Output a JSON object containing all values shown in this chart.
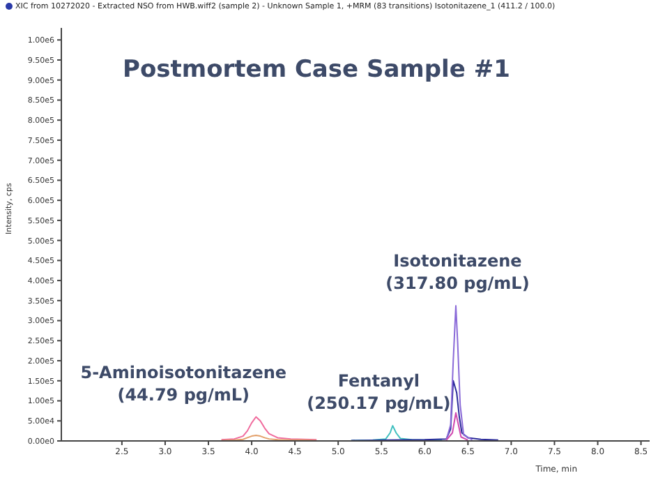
{
  "chart_data": {
    "type": "line",
    "title": "XIC from 10272020 - Extracted NSO from HWB.wiff2 (sample 2) - Unknown Sample 1, +MRM (83 transitions) Isotonitazene_1 (411.2 / 100.0)",
    "subtitle": "Postmortem Case Sample #1",
    "xlabel": "Time, min",
    "ylabel": "Intensity, cps",
    "xlim": [
      1.8,
      8.6
    ],
    "xticks": [
      2.5,
      {
        "value": 3,
        "label": "3.0"
      },
      3.5,
      {
        "value": 4,
        "label": "4.0"
      },
      4.5,
      {
        "value": 5,
        "label": "5.0"
      },
      5.5,
      {
        "value": 6,
        "label": "6.0"
      },
      6.5,
      {
        "value": 7,
        "label": "7.0"
      },
      7.5,
      {
        "value": 8,
        "label": "8.0"
      },
      8.5
    ],
    "ylim": [
      0,
      1030000
    ],
    "yticks": [
      {
        "value": 0,
        "label": "0.00e0"
      },
      {
        "value": 50000,
        "label": "5.00e4"
      },
      {
        "value": 100000,
        "label": "1.00e5"
      },
      {
        "value": 150000,
        "label": "1.50e5"
      },
      {
        "value": 200000,
        "label": "2.00e5"
      },
      {
        "value": 250000,
        "label": "2.50e5"
      },
      {
        "value": 300000,
        "label": "3.00e5"
      },
      {
        "value": 350000,
        "label": "3.50e5"
      },
      {
        "value": 400000,
        "label": "4.00e5"
      },
      {
        "value": 450000,
        "label": "4.50e5"
      },
      {
        "value": 500000,
        "label": "5.00e5"
      },
      {
        "value": 550000,
        "label": "5.50e5"
      },
      {
        "value": 600000,
        "label": "6.00e5"
      },
      {
        "value": 650000,
        "label": "6.50e5"
      },
      {
        "value": 700000,
        "label": "7.00e5"
      },
      {
        "value": 750000,
        "label": "7.50e5"
      },
      {
        "value": 800000,
        "label": "8.00e5"
      },
      {
        "value": 850000,
        "label": "8.50e5"
      },
      {
        "value": 900000,
        "label": "9.00e5"
      },
      {
        "value": 950000,
        "label": "9.50e5"
      },
      {
        "value": 1000000,
        "label": "1.00e6"
      }
    ],
    "grid": false,
    "legend": false,
    "series": [
      {
        "color": "#f06a9c",
        "x": [
          3.65,
          3.8,
          3.9,
          3.95,
          4.0,
          4.05,
          4.1,
          4.15,
          4.2,
          4.3,
          4.45,
          4.6,
          4.75
        ],
        "values": [
          3000,
          5000,
          12000,
          25000,
          45000,
          60000,
          50000,
          32000,
          18000,
          8000,
          5000,
          4000,
          3000
        ]
      },
      {
        "color": "#e3a06a",
        "x": [
          3.65,
          3.8,
          3.9,
          3.95,
          4.0,
          4.05,
          4.1,
          4.15,
          4.2,
          4.3,
          4.45,
          4.6,
          4.75
        ],
        "values": [
          1000,
          2000,
          4000,
          8000,
          12000,
          14000,
          12000,
          8000,
          5000,
          3000,
          2000,
          2000,
          1000
        ]
      },
      {
        "color": "#3fbfbf",
        "x": [
          5.15,
          5.4,
          5.55,
          5.6,
          5.63,
          5.67,
          5.72,
          5.85,
          6.0,
          6.2
        ],
        "values": [
          1000,
          2000,
          5000,
          20000,
          38000,
          20000,
          6000,
          3000,
          2000,
          2000
        ]
      },
      {
        "color": "#2a2a9a",
        "x": [
          5.15,
          5.6,
          6.0,
          6.25,
          6.3,
          6.33,
          6.37,
          6.4,
          6.43,
          6.5,
          6.65,
          6.85
        ],
        "values": [
          1000,
          2000,
          3000,
          5000,
          30000,
          150000,
          120000,
          60000,
          20000,
          8000,
          4000,
          2000
        ]
      },
      {
        "color": "#8a6ad8",
        "x": [
          6.25,
          6.3,
          6.33,
          6.36,
          6.38,
          6.41,
          6.45,
          6.55
        ],
        "values": [
          3000,
          40000,
          200000,
          337000,
          250000,
          90000,
          15000,
          3000
        ]
      },
      {
        "color": "#d04ab0",
        "x": [
          6.25,
          6.32,
          6.36,
          6.38,
          6.42,
          6.5
        ],
        "values": [
          2000,
          20000,
          70000,
          50000,
          10000,
          2000
        ]
      }
    ],
    "annotations": [
      {
        "text": "5-Aminoisotonitazene (44.79 pg/mL)",
        "x": 4.05,
        "y": 60000
      },
      {
        "text": "Fentanyl (250.17 pg/mL)",
        "x": 5.63,
        "y": 38000
      },
      {
        "text": "Isotonitazene (317.80 pg/mL)",
        "x": 6.38,
        "y": 337000
      }
    ]
  }
}
